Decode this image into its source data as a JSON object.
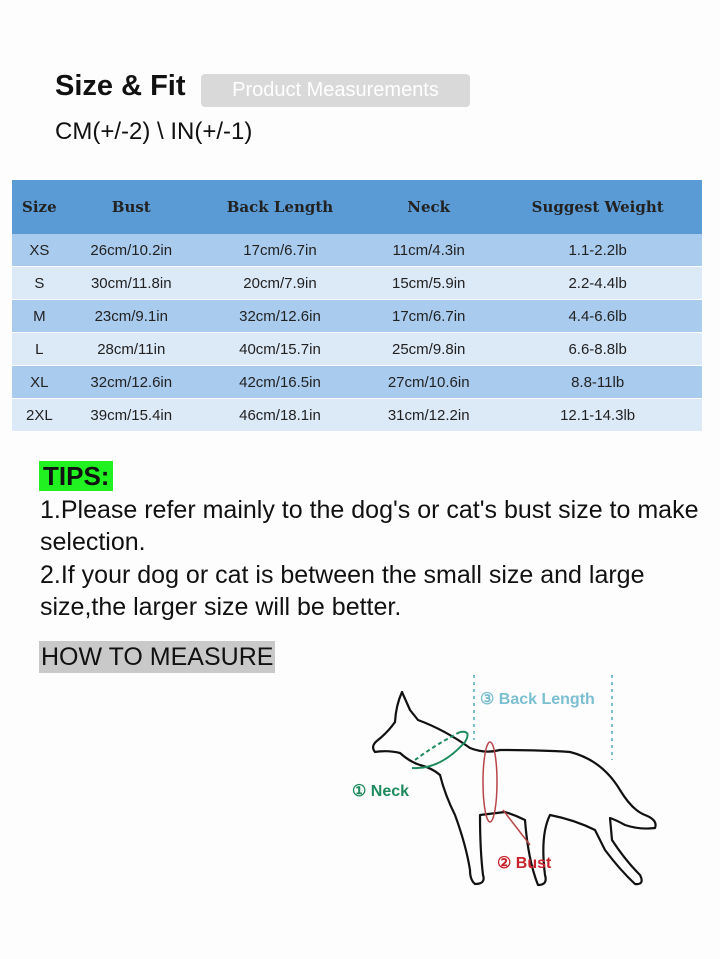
{
  "header": {
    "title": "Size & Fit",
    "badge": "Product Measurements",
    "units": "CM(+/-2) \\ IN(+/-1)"
  },
  "table": {
    "columns": [
      "Size",
      "Bust",
      "Back Length",
      "Neck",
      "Suggest Weight"
    ],
    "rows": [
      [
        "XS",
        "26cm/10.2in",
        "17cm/6.7in",
        "11cm/4.3in",
        "1.1-2.2lb"
      ],
      [
        "S",
        "30cm/11.8in",
        "20cm/7.9in",
        "15cm/5.9in",
        "2.2-4.4lb"
      ],
      [
        "M",
        "23cm/9.1in",
        "32cm/12.6in",
        "17cm/6.7in",
        "4.4-6.6lb"
      ],
      [
        "L",
        "28cm/11in",
        "40cm/15.7in",
        "25cm/9.8in",
        "6.6-8.8lb"
      ],
      [
        "XL",
        "32cm/12.6in",
        "42cm/16.5in",
        "27cm/10.6in",
        "8.8-11lb"
      ],
      [
        "2XL",
        "39cm/15.4in",
        "46cm/18.1in",
        "31cm/12.2in",
        "12.1-14.3lb"
      ]
    ],
    "colors": {
      "header": "#5b9bd5",
      "row_dark": "#a9cbee",
      "row_light": "#dce9f7"
    }
  },
  "tips": {
    "heading": "TIPS:",
    "items": [
      "1.Please refer mainly to the dog's or cat's  bust size to make selection.",
      "2.If your dog or cat is between the small size and large size,the larger size will be better."
    ]
  },
  "how_to_measure": {
    "heading": "HOW TO MEASURE",
    "labels": {
      "neck": "① Neck",
      "bust": "② Bust",
      "back_length": "③ Back Length"
    },
    "colors": {
      "neck": "#1e8a5e",
      "bust": "#c8232c",
      "back_length": "#7bbfd0"
    }
  }
}
